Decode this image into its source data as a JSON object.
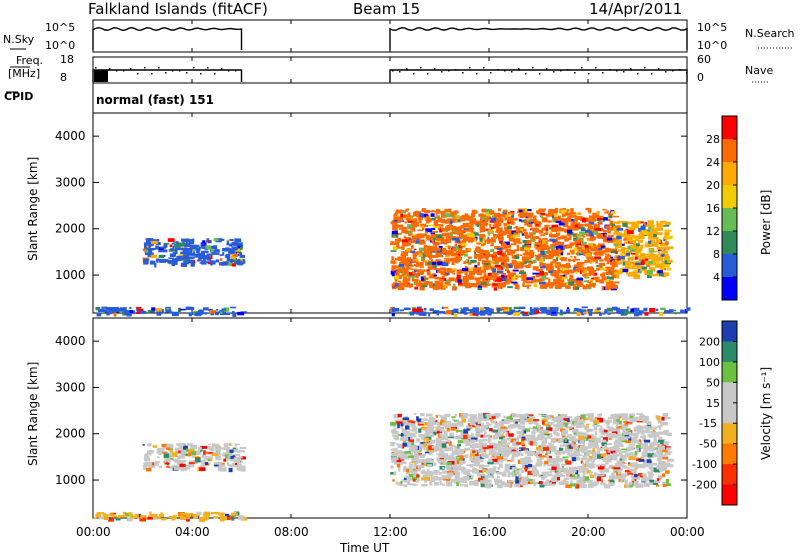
{
  "header": {
    "station": "Falkland Islands (fitACF)",
    "beam": "Beam 15",
    "date": "14/Apr/2011"
  },
  "chart_data": [
    {
      "type": "line",
      "panel": "noise",
      "left_label": "N.Sky",
      "right_label": "N.Search",
      "left_ticks": [
        "10^5",
        "10^0"
      ],
      "right_ticks": [
        "10^5",
        "10^0"
      ],
      "segments": [
        {
          "x_start": 0.0,
          "x_end": 6.0,
          "level": "high"
        },
        {
          "x_start": 12.0,
          "x_end": 24.0,
          "level": "high"
        }
      ]
    },
    {
      "type": "line",
      "panel": "frequency",
      "left_label_lines": [
        "Freq.",
        "[MHz]"
      ],
      "right_label": "Nave",
      "left_ticks": [
        "18",
        "8"
      ],
      "right_ticks": [
        "60",
        "0"
      ],
      "segments": [
        {
          "x_start": 0.0,
          "x_end": 6.0
        },
        {
          "x_start": 12.0,
          "x_end": 24.0
        }
      ]
    },
    {
      "type": "text",
      "panel": "cpid",
      "label": "CPID",
      "value": "normal (fast) 151"
    },
    {
      "type": "heatmap",
      "panel": "power",
      "ylabel": "Slant Range [km]",
      "yticks": [
        "4000",
        "3000",
        "2000",
        "1000"
      ],
      "ylim": [
        180,
        4500
      ],
      "colorbar": {
        "label": "Power [dB]",
        "ticks": [
          "28",
          "24",
          "20",
          "16",
          "12",
          "8",
          "4"
        ],
        "colors": [
          "#ff0000",
          "#ff6a00",
          "#ffaa00",
          "#f2cc00",
          "#66bb55",
          "#2e8b57",
          "#2a5bd7",
          "#0000ff"
        ]
      },
      "echo_regions": [
        {
          "x_start": 2.0,
          "x_end": 6.0,
          "range_start": 1250,
          "range_end": 1800,
          "color": "#2a5bd7"
        },
        {
          "x_start": 0.0,
          "x_end": 6.0,
          "range_start": 180,
          "range_end": 320,
          "color": "#2a5bd7"
        },
        {
          "x_start": 12.0,
          "x_end": 21.0,
          "range_start": 750,
          "range_end": 2450,
          "color": "#ff6a00"
        },
        {
          "x_start": 21.0,
          "x_end": 23.2,
          "range_start": 1000,
          "range_end": 2200,
          "color": "#ffaa00"
        },
        {
          "x_start": 12.0,
          "x_end": 24.0,
          "range_start": 180,
          "range_end": 320,
          "color": "#2a5bd7"
        }
      ]
    },
    {
      "type": "heatmap",
      "panel": "velocity",
      "ylabel": "Slant Range [km]",
      "yticks": [
        "4000",
        "3000",
        "2000",
        "1000"
      ],
      "ylim": [
        180,
        4500
      ],
      "colorbar": {
        "label": "Velocity [m s⁻¹]",
        "ticks": [
          "200",
          "100",
          "50",
          "15",
          "-15",
          "-50",
          "-100",
          "-200"
        ],
        "colors": [
          "#1b3fb0",
          "#2a8a6a",
          "#6cc040",
          "#c8c8c8",
          "#c8c8c8",
          "#f0b020",
          "#ff7a00",
          "#ff3000",
          "#ff0000"
        ]
      },
      "echo_regions": [
        {
          "x_start": 2.0,
          "x_end": 6.0,
          "range_start": 1250,
          "range_end": 1800,
          "color": "#c8c8c8"
        },
        {
          "x_start": 12.0,
          "x_end": 23.2,
          "range_start": 900,
          "range_end": 2450,
          "color": "#c8c8c8"
        },
        {
          "x_start": 0.0,
          "x_end": 6.0,
          "range_start": 180,
          "range_end": 320,
          "color": "#f0b020"
        }
      ]
    }
  ],
  "x_axis": {
    "label": "Time UT",
    "ticks": [
      "00:00",
      "04:00",
      "08:00",
      "12:00",
      "16:00",
      "20:00",
      "00:00"
    ],
    "range": [
      0,
      24
    ]
  }
}
